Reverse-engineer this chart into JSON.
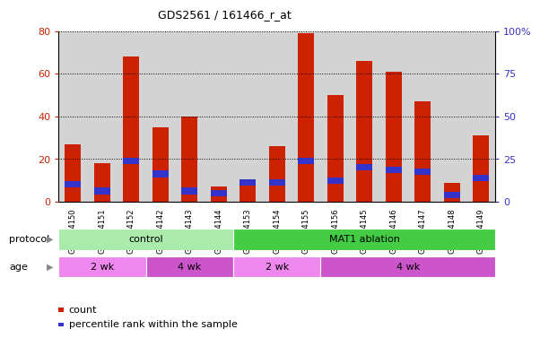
{
  "title": "GDS2561 / 161466_r_at",
  "samples": [
    "GSM154150",
    "GSM154151",
    "GSM154152",
    "GSM154142",
    "GSM154143",
    "GSM154144",
    "GSM154153",
    "GSM154154",
    "GSM154155",
    "GSM154156",
    "GSM154145",
    "GSM154146",
    "GSM154147",
    "GSM154148",
    "GSM154149"
  ],
  "red_values": [
    27,
    18,
    68,
    35,
    40,
    7,
    10,
    26,
    79,
    50,
    66,
    61,
    47,
    9,
    31
  ],
  "blue_values": [
    8,
    5,
    19,
    13,
    5,
    4,
    9,
    9,
    19,
    10,
    16,
    15,
    14,
    3,
    11
  ],
  "protocol_groups": [
    {
      "label": "control",
      "start": 0,
      "end": 6,
      "color": "#aaeaaa"
    },
    {
      "label": "MAT1 ablation",
      "start": 6,
      "end": 15,
      "color": "#44cc44"
    }
  ],
  "age_groups": [
    {
      "label": "2 wk",
      "start": 0,
      "end": 3,
      "color": "#ee88ee"
    },
    {
      "label": "4 wk",
      "start": 3,
      "end": 6,
      "color": "#cc55cc"
    },
    {
      "label": "2 wk",
      "start": 6,
      "end": 9,
      "color": "#ee88ee"
    },
    {
      "label": "4 wk",
      "start": 9,
      "end": 15,
      "color": "#cc55cc"
    }
  ],
  "ylim_left": [
    0,
    80
  ],
  "ylim_right": [
    0,
    100
  ],
  "yticks_left": [
    0,
    20,
    40,
    60,
    80
  ],
  "yticks_right": [
    0,
    25,
    50,
    75,
    100
  ],
  "bar_color_red": "#cc2200",
  "bar_color_blue": "#3333cc",
  "grid_color": "#000000",
  "bar_width": 0.55,
  "bg_color": "#d3d3d3",
  "legend_items": [
    {
      "label": "count",
      "color": "#cc2200"
    },
    {
      "label": "percentile rank within the sample",
      "color": "#3333cc"
    }
  ]
}
